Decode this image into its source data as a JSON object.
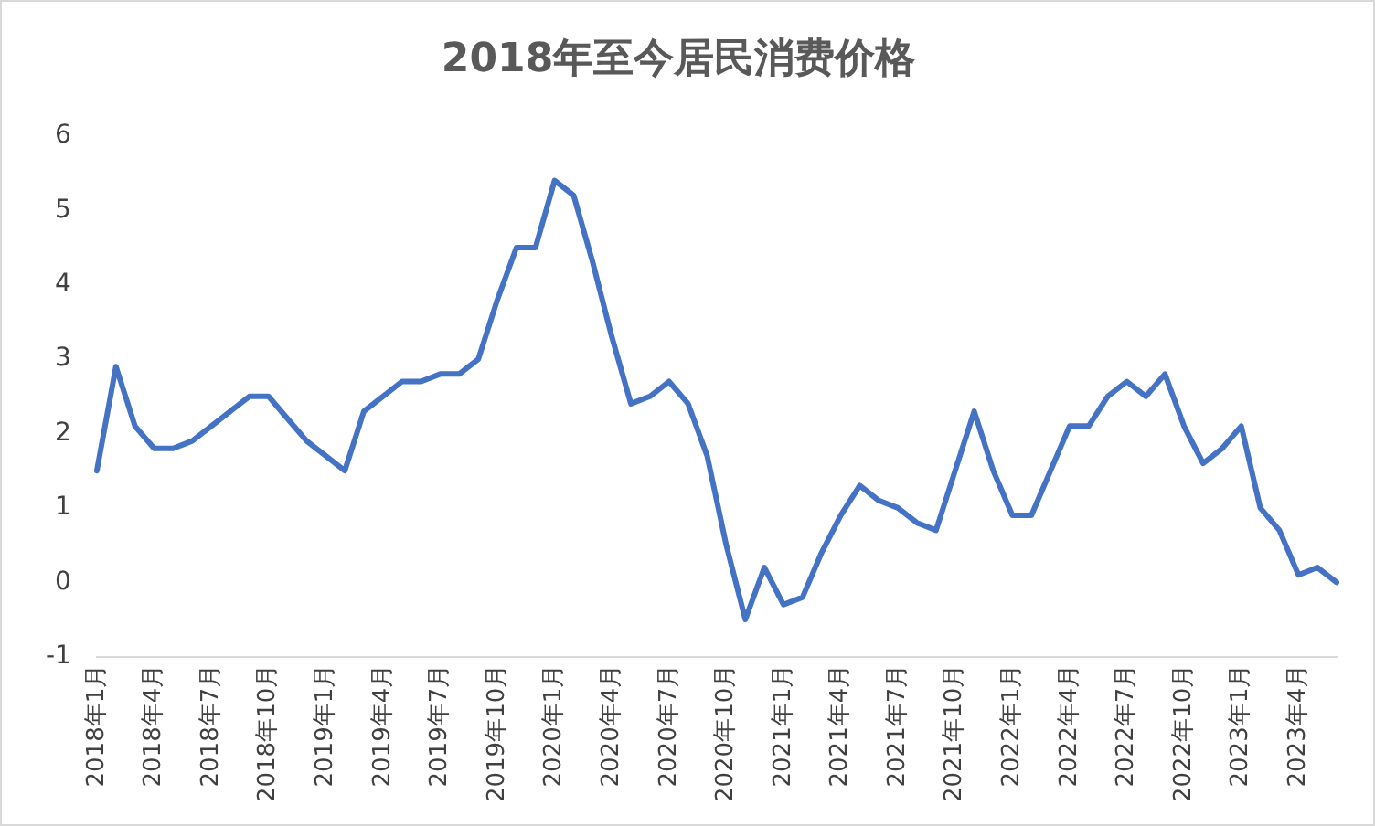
{
  "chart_data": {
    "type": "line",
    "title": "2018年至今居民消费价格",
    "categories": [
      "2018年1月",
      null,
      null,
      "2018年4月",
      null,
      null,
      "2018年7月",
      null,
      null,
      "2018年10月",
      null,
      null,
      "2019年1月",
      null,
      null,
      "2019年4月",
      null,
      null,
      "2019年7月",
      null,
      null,
      "2019年10月",
      null,
      null,
      "2020年1月",
      null,
      null,
      "2020年4月",
      null,
      null,
      "2020年7月",
      null,
      null,
      "2020年10月",
      null,
      null,
      "2021年1月",
      null,
      null,
      "2021年4月",
      null,
      null,
      "2021年7月",
      null,
      null,
      "2021年10月",
      null,
      null,
      "2022年1月",
      null,
      null,
      "2022年4月",
      null,
      null,
      "2022年7月",
      null,
      null,
      "2022年10月",
      null,
      null,
      "2023年1月",
      null,
      null,
      "2023年4月",
      null,
      null
    ],
    "series": [
      {
        "color": "#4472c4",
        "values": [
          1.5,
          2.9,
          2.1,
          1.8,
          1.8,
          1.9,
          2.1,
          2.3,
          2.5,
          2.5,
          2.2,
          1.9,
          1.7,
          1.5,
          2.3,
          2.5,
          2.7,
          2.7,
          2.8,
          2.8,
          3.0,
          3.8,
          4.5,
          4.5,
          5.4,
          5.2,
          4.3,
          3.3,
          2.4,
          2.5,
          2.7,
          2.4,
          1.7,
          0.5,
          -0.5,
          0.2,
          -0.3,
          -0.2,
          0.4,
          0.9,
          1.3,
          1.1,
          1.0,
          0.8,
          0.7,
          1.5,
          2.3,
          1.5,
          0.9,
          0.9,
          1.5,
          2.1,
          2.1,
          2.5,
          2.7,
          2.5,
          2.8,
          2.1,
          1.6,
          1.8,
          2.1,
          1.0,
          0.7,
          0.1,
          0.2,
          0.0
        ]
      }
    ],
    "ylim": [
      -1,
      6
    ],
    "yticks": [
      -1,
      0,
      1,
      2,
      3,
      4,
      5,
      6
    ],
    "grid": false,
    "legend": false,
    "marker": "none",
    "line_style": "solid"
  }
}
